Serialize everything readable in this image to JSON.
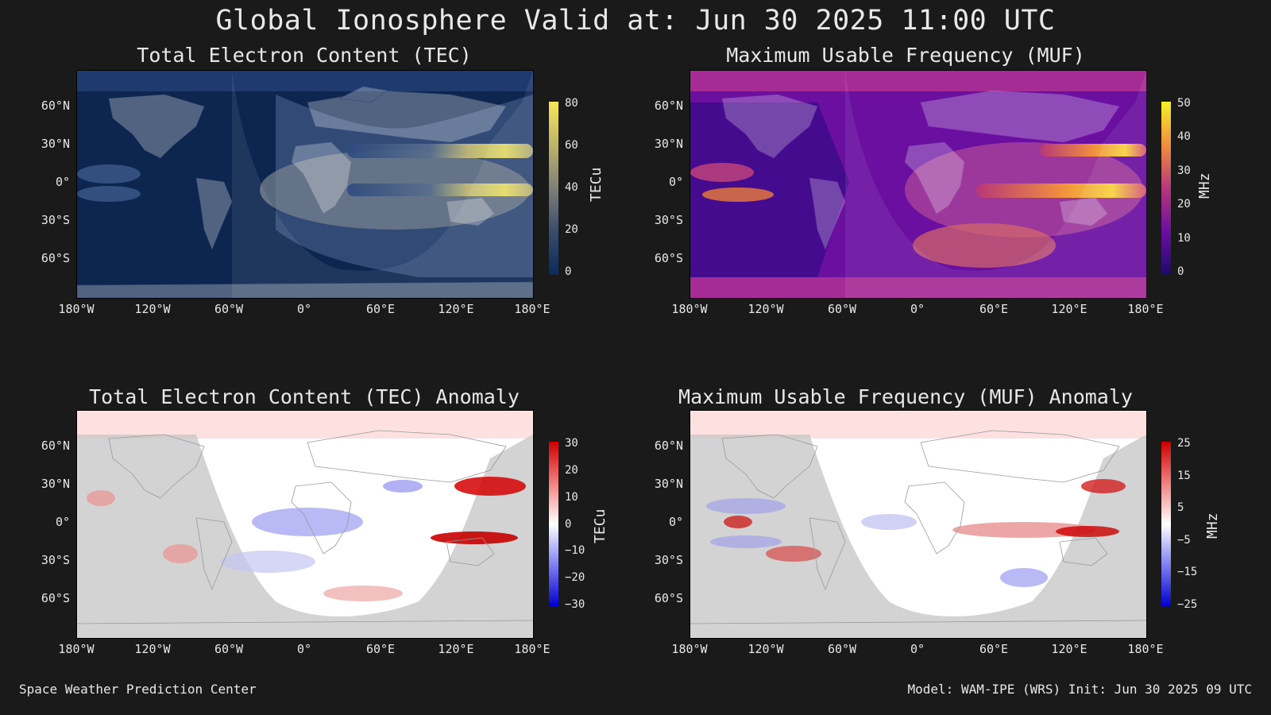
{
  "title": "Global Ionosphere Valid at: Jun 30 2025 11:00 UTC",
  "footer": {
    "left": "Space Weather Prediction Center",
    "right": "Model: WAM-IPE (WRS) Init: Jun 30 2025 09 UTC"
  },
  "lat_labels": [
    "60°N",
    "30°N",
    "0°",
    "30°S",
    "60°S"
  ],
  "lon_labels": [
    "180°W",
    "120°W",
    "60°W",
    "0°",
    "60°E",
    "120°E",
    "180°E"
  ],
  "panels": [
    {
      "title": "Total Electron Content (TEC)",
      "unit": "TECu",
      "colorbar_ticks": [
        "80",
        "60",
        "40",
        "20",
        "0"
      ],
      "colormap": "cividis-like (dark navy to yellow)",
      "colors": {
        "low": "#0b2a5a",
        "high": "#f7e65a"
      }
    },
    {
      "title": "Maximum Usable Frequency (MUF)",
      "unit": "MHz",
      "colorbar_ticks": [
        "50",
        "40",
        "30",
        "20",
        "10",
        "0"
      ],
      "colormap": "plasma (indigo to yellow)",
      "colors": {
        "low": "#1d0a6b",
        "high": "#f4f02a"
      }
    },
    {
      "title": "Total Electron Content (TEC) Anomaly",
      "unit": "TECu",
      "colorbar_ticks": [
        "30",
        "20",
        "10",
        "0",
        "−10",
        "−20",
        "−30"
      ],
      "colormap": "diverging blue-white-red",
      "colors": {
        "low": "#0000cc",
        "high": "#cc0000"
      }
    },
    {
      "title": "Maximum Usable Frequency (MUF) Anomaly",
      "unit": "MHz",
      "colorbar_ticks": [
        "25",
        "15",
        "5",
        "−5",
        "−15",
        "−25"
      ],
      "colormap": "diverging blue-white-red",
      "colors": {
        "low": "#0000cc",
        "high": "#cc0000"
      }
    }
  ]
}
